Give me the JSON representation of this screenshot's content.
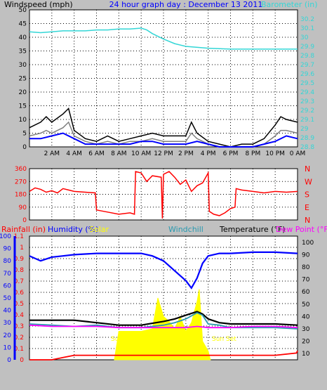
{
  "colors": {
    "background": "#c0c0c0",
    "plot_bg": "#ffffff",
    "grid": "#000000",
    "black": "#000000",
    "blue": "#0000ff",
    "cyan": "#33d6d6",
    "red": "#ff0000",
    "magenta": "#ff00ff",
    "yellow": "#ffff00",
    "gray": "#808080",
    "teal": "#2a9ab0"
  },
  "chart_data": [
    {
      "type": "line",
      "title": "24 hour graph day : December 13 2011",
      "ylabel": "Windspeed (mph)",
      "y2label": "Barometer (in)",
      "x_ticks": [
        "2 AM",
        "4 AM",
        "6 AM",
        "8 AM",
        "10 AM",
        "12 PM",
        "2 PM",
        "4 PM",
        "6 PM",
        "8 PM",
        "10 PM",
        "0 AM"
      ],
      "ylim": [
        0,
        50
      ],
      "y_ticks": [
        0,
        5,
        10,
        15,
        20,
        25,
        30,
        35,
        40,
        45,
        50
      ],
      "y2lim": [
        28.8,
        30.3
      ],
      "y2_ticks": [
        "28.8",
        "28.9",
        "29",
        "29.1",
        "29.2",
        "29.3",
        "29.4",
        "29.5",
        "29.6",
        "29.7",
        "29.8",
        "29.9",
        "30",
        "30.1",
        "30.2"
      ],
      "grid": true,
      "series": [
        {
          "name": "Barometer",
          "axis": "right",
          "x": [
            0,
            1,
            2,
            3,
            4,
            5,
            6,
            7,
            8,
            9,
            10,
            10.5,
            11,
            12,
            13,
            14,
            16,
            18,
            20,
            22,
            24
          ],
          "values": [
            30.06,
            30.05,
            30.06,
            30.07,
            30.07,
            30.07,
            30.08,
            30.08,
            30.09,
            30.09,
            30.1,
            30.08,
            30.04,
            29.98,
            29.93,
            29.9,
            29.88,
            29.87,
            29.87,
            29.87,
            29.87
          ]
        },
        {
          "name": "Wind gust",
          "x": [
            0,
            1,
            1.5,
            2,
            3,
            3.5,
            4,
            5,
            6,
            7,
            8,
            9,
            10,
            11,
            12,
            13,
            14,
            14.5,
            15,
            16,
            17,
            18,
            19,
            20,
            21,
            22,
            22.5,
            23,
            24
          ],
          "values": [
            7,
            9,
            11,
            9,
            12,
            14,
            6,
            3,
            2,
            4,
            2,
            3,
            4,
            5,
            4,
            4,
            4,
            9,
            5,
            2,
            1,
            0,
            1,
            1,
            3,
            8,
            11,
            10,
            9
          ]
        },
        {
          "name": "Wind speed",
          "x": [
            0,
            1,
            1.5,
            2,
            3,
            3.5,
            4,
            5,
            6,
            7,
            8,
            9,
            10,
            11,
            12,
            13,
            14,
            14.5,
            15,
            16,
            17,
            18,
            19,
            20,
            21,
            22,
            22.5,
            23,
            24
          ],
          "values": [
            4,
            5,
            6,
            5,
            7,
            9,
            4,
            2,
            1,
            2,
            1,
            2,
            2,
            3,
            2,
            2,
            2,
            5,
            3,
            1,
            0,
            0,
            0,
            0,
            1,
            4,
            6,
            6,
            5
          ]
        },
        {
          "name": "Wind avg",
          "x": [
            0,
            1,
            2,
            3,
            4,
            5,
            6,
            7,
            8,
            9,
            10,
            11,
            12,
            13,
            14,
            15,
            16,
            17,
            18,
            19,
            20,
            21,
            22,
            23,
            24
          ],
          "values": [
            3,
            3,
            4,
            5,
            3,
            1,
            1,
            1,
            1,
            1,
            2,
            2,
            1,
            1,
            1,
            2,
            1,
            0,
            0,
            0,
            0,
            1,
            2,
            4,
            3
          ]
        }
      ]
    },
    {
      "type": "line",
      "ylim": [
        0,
        360
      ],
      "y_ticks": [
        0,
        90,
        180,
        270,
        360
      ],
      "y2_ticks": [
        "N",
        "E",
        "S",
        "W",
        "N"
      ],
      "grid": true,
      "series": [
        {
          "name": "Wind direction",
          "x": [
            0,
            0.5,
            1,
            1.5,
            2,
            2.5,
            3,
            3.5,
            4,
            5,
            5.9,
            6,
            7,
            8,
            9,
            9.4,
            9.5,
            10,
            10.5,
            11,
            11.8,
            11.9,
            12,
            12.5,
            13,
            13.5,
            14,
            14.5,
            15,
            15.5,
            16,
            16.1,
            16.5,
            17,
            17.5,
            18,
            18.4,
            18.5,
            19,
            20,
            21,
            22,
            23,
            24
          ],
          "values": [
            200,
            225,
            215,
            195,
            205,
            190,
            220,
            210,
            200,
            195,
            190,
            70,
            55,
            40,
            50,
            40,
            340,
            330,
            270,
            310,
            300,
            10,
            320,
            340,
            300,
            250,
            280,
            200,
            240,
            260,
            330,
            60,
            40,
            30,
            50,
            80,
            90,
            220,
            210,
            200,
            190,
            200,
            195,
            200
          ]
        }
      ]
    },
    {
      "type": "line",
      "left_axes": [
        {
          "label": "Rainfall (in)",
          "ylim": [
            0,
            1.1
          ],
          "ticks": [
            "0",
            "0.1",
            "0.2",
            "0.3",
            "0.4",
            "0.5",
            "0.6",
            "0.7",
            "0.8",
            "0.9",
            "1",
            "1.1"
          ]
        },
        {
          "label": "Humidity (%)",
          "ylim": [
            0,
            100
          ],
          "ticks": [
            "0",
            "10",
            "20",
            "30",
            "40",
            "50",
            "60",
            "70",
            "80",
            "90",
            "100"
          ]
        }
      ],
      "legend_labels": [
        "Solar",
        "Windchill"
      ],
      "right_axes": [
        {
          "label": "Temperature (°F)",
          "ylim": [
            5,
            105
          ],
          "ticks": [
            "10",
            "20",
            "30",
            "40",
            "50",
            "60",
            "70",
            "80",
            "90",
            "100"
          ]
        },
        {
          "label": "Dew Point (°F)"
        }
      ],
      "annotations": [
        "Sun Rise",
        "Sun Set"
      ],
      "grid": true,
      "series": [
        {
          "name": "Humidity",
          "axis": "humidity",
          "x": [
            0,
            1,
            2,
            3,
            4,
            6,
            8,
            10,
            11,
            12,
            13,
            14,
            14.5,
            15,
            15.5,
            16,
            17,
            18,
            20,
            22,
            24
          ],
          "values": [
            84,
            80,
            83,
            84,
            85,
            86,
            86,
            86,
            84,
            80,
            72,
            64,
            58,
            66,
            78,
            84,
            86,
            86,
            87,
            87,
            86
          ]
        },
        {
          "name": "Temperature",
          "axis": "temp",
          "x": [
            0,
            2,
            4,
            6,
            8,
            10,
            12,
            13,
            14,
            15,
            15.5,
            16,
            17,
            18,
            20,
            22,
            24
          ],
          "values": [
            37,
            37,
            37,
            35,
            33,
            33,
            36,
            38,
            41,
            44,
            42,
            38,
            35,
            34,
            34,
            34,
            33
          ]
        },
        {
          "name": "Windchill",
          "axis": "temp",
          "x": [
            0,
            2,
            4,
            6,
            8,
            10,
            12,
            13,
            14,
            15,
            15.5,
            16,
            17,
            18,
            20,
            22,
            24
          ],
          "values": [
            34,
            33,
            32,
            33,
            31,
            31,
            33,
            35,
            38,
            43,
            41,
            34,
            33,
            31,
            31,
            31,
            30
          ]
        },
        {
          "name": "Dew Point",
          "axis": "temp",
          "x": [
            0,
            2,
            4,
            6,
            8,
            10,
            12,
            14,
            15,
            16,
            18,
            20,
            22,
            24
          ],
          "values": [
            33,
            32,
            32,
            32,
            31,
            31,
            31,
            31,
            32,
            31,
            31,
            32,
            32,
            31
          ]
        },
        {
          "name": "Rainfall",
          "axis": "rain",
          "x": [
            0,
            2,
            3,
            4,
            22,
            23.9,
            24
          ],
          "values": [
            0,
            0,
            0.02,
            0.04,
            0.04,
            0.06,
            0.08
          ]
        },
        {
          "name": "Solar",
          "axis": "temp_area",
          "x": [
            7.6,
            8,
            9,
            10,
            11,
            11.5,
            12,
            12.5,
            13,
            13.5,
            14,
            14.5,
            15,
            15.2,
            15.5,
            16,
            16.2
          ],
          "values": [
            5,
            28,
            28,
            28,
            30,
            55,
            40,
            36,
            30,
            40,
            28,
            35,
            52,
            62,
            20,
            12,
            5
          ]
        }
      ]
    }
  ]
}
